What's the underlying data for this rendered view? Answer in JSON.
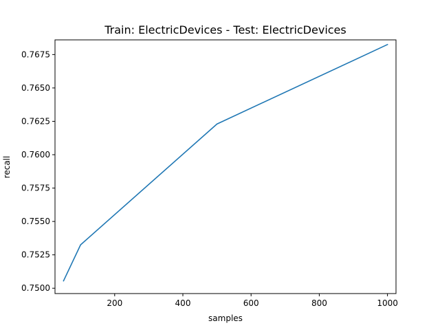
{
  "chart_data": {
    "type": "line",
    "title": "Train: ElectricDevices - Test: ElectricDevices",
    "xlabel": "samples",
    "ylabel": "recall",
    "xlim": [
      25,
      1025
    ],
    "ylim": [
      0.7496,
      0.7686
    ],
    "xticks": [
      200,
      400,
      600,
      800,
      1000
    ],
    "yticks": [
      0.75,
      0.7525,
      0.755,
      0.7575,
      0.76,
      0.7625,
      0.765,
      0.7675
    ],
    "ytick_labels": [
      "0.7500",
      "0.7525",
      "0.7550",
      "0.7575",
      "0.7600",
      "0.7625",
      "0.7650",
      "0.7675"
    ],
    "grid": false,
    "series": [
      {
        "color": "#1f77b4",
        "x": [
          50,
          100,
          500,
          1000
        ],
        "y": [
          0.75055,
          0.75325,
          0.7623,
          0.76825
        ]
      }
    ]
  }
}
